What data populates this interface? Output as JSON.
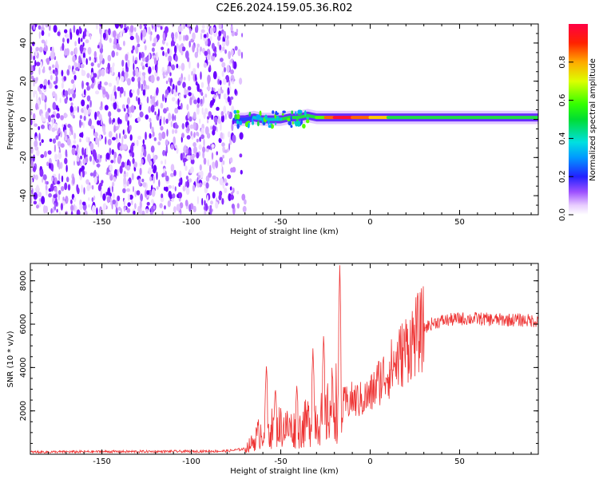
{
  "title": "C2E6.2024.159.05.36.R02",
  "chart_data": [
    {
      "type": "heatmap",
      "xlabel": "Height of straight line (km)",
      "ylabel": "Frequency (Hz)",
      "xlim": [
        -190,
        94
      ],
      "ylim": [
        -50,
        50
      ],
      "xticks": [
        -150,
        -100,
        -50,
        0,
        50
      ],
      "yticks": [
        -40,
        -20,
        0,
        20,
        40
      ],
      "noise_region_x": [
        -190,
        -76
      ],
      "signal_trace": {
        "x": [
          -76,
          -70,
          -65,
          -60,
          -55,
          -50,
          -45,
          -40,
          -35,
          -30,
          -25,
          -20,
          -15,
          -10,
          -5,
          0,
          10,
          20,
          30,
          40,
          50,
          60,
          70,
          80,
          94
        ],
        "frequency": [
          0,
          0,
          1,
          0,
          0,
          0,
          1,
          1,
          2,
          1,
          1,
          1,
          1,
          1,
          1,
          1,
          1,
          1,
          1,
          1,
          1,
          1,
          1,
          1,
          1
        ],
        "amplitude": [
          0.2,
          0.3,
          0.35,
          0.4,
          0.35,
          0.4,
          0.45,
          0.45,
          0.4,
          0.45,
          0.6,
          0.9,
          0.9,
          0.9,
          0.85,
          0.7,
          0.5,
          0.45,
          0.45,
          0.45,
          0.5,
          0.45,
          0.45,
          0.45,
          0.45
        ]
      },
      "colorbar": {
        "label": "Normalized spectral amplitude",
        "ticks": [
          "0.0",
          "0.2",
          "0.4",
          "0.6",
          "0.8"
        ]
      }
    },
    {
      "type": "line",
      "xlabel": "Height of straight line (km)",
      "ylabel": "SNR (10 * v/v)",
      "xlim": [
        -190,
        94
      ],
      "ylim": [
        0,
        8800
      ],
      "xticks": [
        -150,
        -100,
        -50,
        0,
        50
      ],
      "yticks": [
        2000,
        4000,
        6000,
        8000
      ],
      "series": [
        {
          "name": "SNR",
          "color": "#ee3333",
          "x": [
            -190,
            -150,
            -100,
            -80,
            -70,
            -65,
            -62,
            -60,
            -55,
            -50,
            -45,
            -40,
            -35,
            -30,
            -25,
            -20,
            -18,
            -15,
            -10,
            -5,
            0,
            5,
            10,
            15,
            20,
            25,
            30,
            35,
            40,
            50,
            60,
            70,
            80,
            94
          ],
          "y": [
            100,
            120,
            130,
            150,
            250,
            600,
            1000,
            1100,
            1200,
            1300,
            1200,
            1100,
            1500,
            1700,
            1600,
            2600,
            2300,
            2300,
            2500,
            2500,
            2700,
            3400,
            3800,
            4300,
            4900,
            5400,
            5800,
            6050,
            6150,
            6250,
            6250,
            6200,
            6200,
            6150
          ],
          "spikes": [
            {
              "x": -58,
              "y": 4200
            },
            {
              "x": -53,
              "y": 3100
            },
            {
              "x": -41,
              "y": 3200
            },
            {
              "x": -32,
              "y": 4900
            },
            {
              "x": -26,
              "y": 5600
            },
            {
              "x": -17,
              "y": 8800
            }
          ]
        }
      ]
    }
  ]
}
